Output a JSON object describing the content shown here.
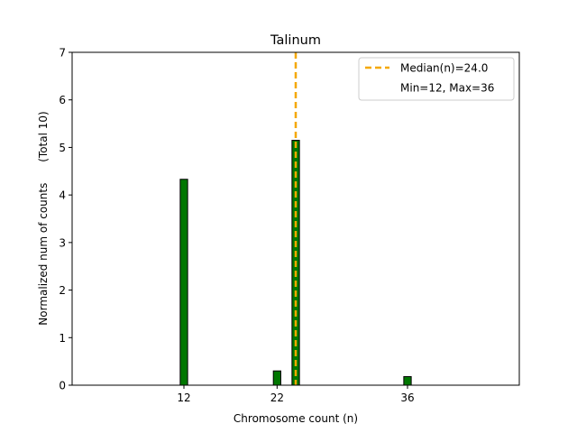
{
  "chart_data": {
    "type": "bar",
    "title": "Talinum",
    "xlabel": "Chromosome count (n)",
    "ylabel": "Normalized num of counts      (Total 10)",
    "xlim": [
      0,
      48
    ],
    "ylim": [
      0,
      7
    ],
    "x_ticks": [
      12,
      22,
      36
    ],
    "y_ticks": [
      0,
      1,
      2,
      3,
      4,
      5,
      6,
      7
    ],
    "bar_width": 0.8,
    "bar_color": "#007700",
    "bar_edge_color": "#000000",
    "bars": [
      {
        "x": 12,
        "value": 4.33
      },
      {
        "x": 22,
        "value": 0.3
      },
      {
        "x": 24,
        "value": 5.15
      },
      {
        "x": 36,
        "value": 0.18
      }
    ],
    "median": {
      "value": 24.0,
      "color": "#f5a800",
      "style": "dashed"
    },
    "legend": {
      "position": "upper right",
      "entries": [
        {
          "label": "Median(n)=24.0",
          "marker": "dashed-line"
        },
        {
          "label": "Min=12, Max=36",
          "marker": "none"
        }
      ]
    },
    "grid": false
  }
}
